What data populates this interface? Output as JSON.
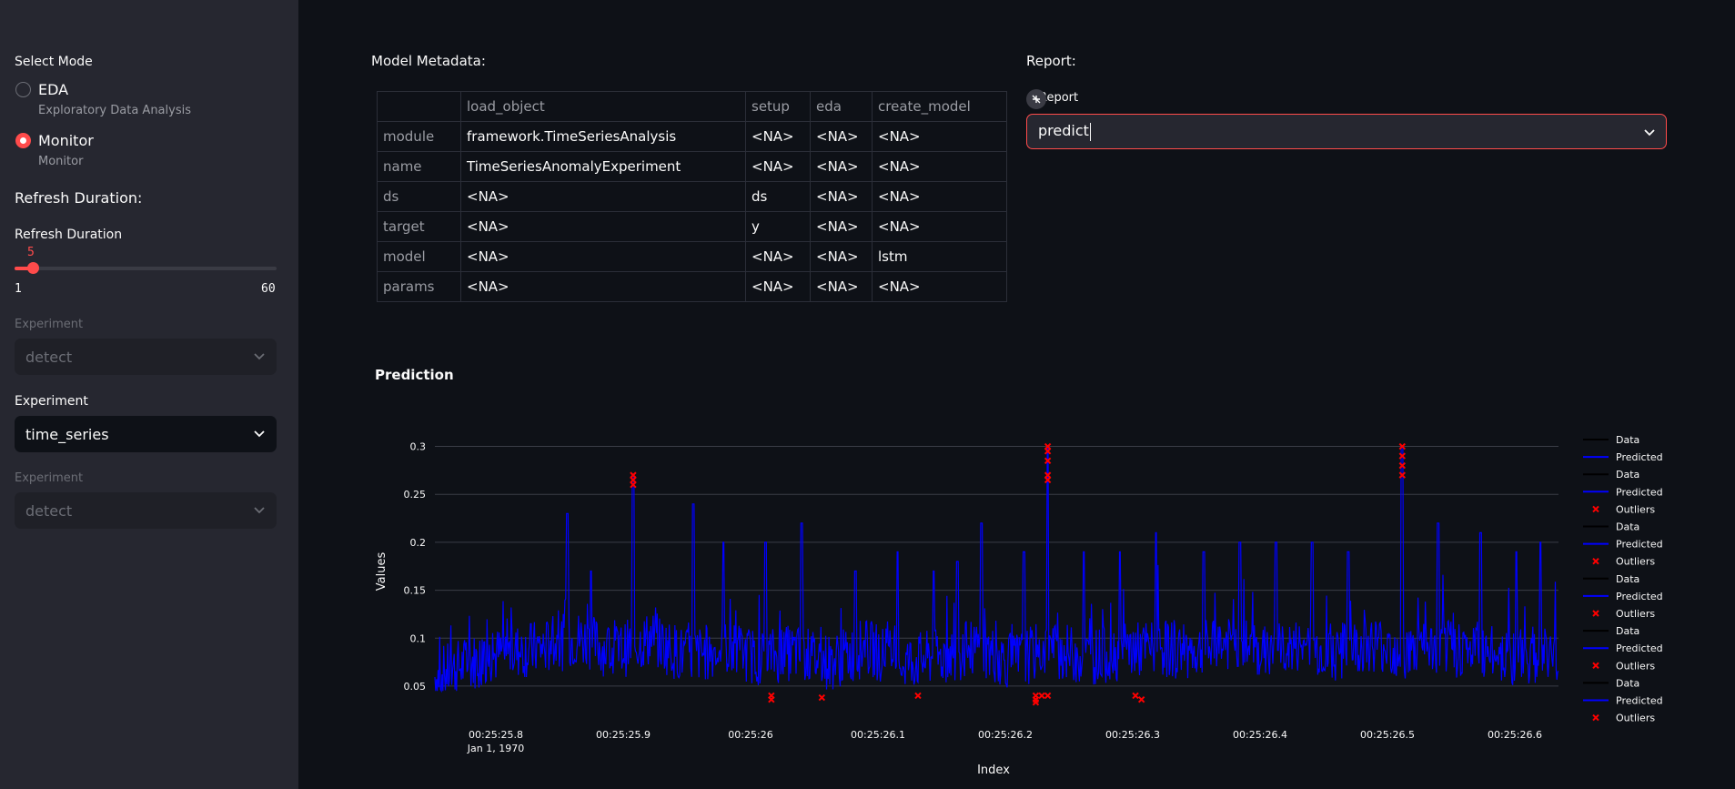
{
  "sidebar": {
    "mode_title": "Select Mode",
    "modes": [
      {
        "label": "EDA",
        "caption": "Exploratory Data Analysis",
        "selected": false
      },
      {
        "label": "Monitor",
        "caption": "Monitor",
        "selected": true
      }
    ],
    "refresh_heading": "Refresh Duration:",
    "refresh_label": "Refresh Duration",
    "slider": {
      "value": "5",
      "min": "1",
      "max": "60",
      "fraction": 0.068
    },
    "experiment_1": {
      "label": "Experiment",
      "value": "detect",
      "disabled": true
    },
    "experiment_2": {
      "label": "Experiment",
      "value": "time_series",
      "disabled": false
    },
    "experiment_3": {
      "label": "Experiment",
      "value": "detect",
      "disabled": true
    }
  },
  "metadata": {
    "title": "Model Metadata:",
    "columns": [
      "",
      "load_object",
      "setup",
      "eda",
      "create_model"
    ],
    "rows": [
      [
        "module",
        "framework.TimeSeriesAnalysis",
        "<NA>",
        "<NA>",
        "<NA>"
      ],
      [
        "name",
        "TimeSeriesAnomalyExperiment",
        "<NA>",
        "<NA>",
        "<NA>"
      ],
      [
        "ds",
        "<NA>",
        "ds",
        "<NA>",
        "<NA>"
      ],
      [
        "target",
        "<NA>",
        "y",
        "<NA>",
        "<NA>"
      ],
      [
        "model",
        "<NA>",
        "<NA>",
        "<NA>",
        "lstm"
      ],
      [
        "params",
        "<NA>",
        "<NA>",
        "<NA>",
        "<NA>"
      ]
    ]
  },
  "report": {
    "title": "Report:",
    "select_label": "Report",
    "select_value": "predict"
  },
  "prediction": {
    "title": "Prediction"
  },
  "colors": {
    "accent": "#ff4b4b",
    "predicted": "#0000ff",
    "data": "#000000",
    "outliers": "#ff0000"
  },
  "chart_data": {
    "type": "line",
    "title": "",
    "xlabel": "Index",
    "ylabel": "Values",
    "x_tick_labels": [
      "00:25:25.8",
      "00:25:25.9",
      "00:25:26",
      "00:25:26.1",
      "00:25:26.2",
      "00:25:26.3",
      "00:25:26.4",
      "00:25:26.5",
      "00:25:26.6"
    ],
    "x_tick_sublabel": "Jan 1, 1970",
    "x_range": [
      "00:25:25.770",
      "00:25:26.705"
    ],
    "y_ticks": [
      0.05,
      0.1,
      0.15,
      0.2,
      0.25,
      0.3
    ],
    "ylim": [
      0.03,
      0.31
    ],
    "grid": true,
    "legend_position": "right",
    "legend": [
      {
        "name": "Data",
        "kind": "line"
      },
      {
        "name": "Predicted",
        "kind": "line"
      },
      {
        "name": "Data",
        "kind": "line"
      },
      {
        "name": "Predicted",
        "kind": "line"
      },
      {
        "name": "Outliers",
        "kind": "marker"
      },
      {
        "name": "Data",
        "kind": "line"
      },
      {
        "name": "Predicted",
        "kind": "line"
      },
      {
        "name": "Outliers",
        "kind": "marker"
      },
      {
        "name": "Data",
        "kind": "line"
      },
      {
        "name": "Predicted",
        "kind": "line"
      },
      {
        "name": "Outliers",
        "kind": "marker"
      },
      {
        "name": "Data",
        "kind": "line"
      },
      {
        "name": "Predicted",
        "kind": "line"
      },
      {
        "name": "Outliers",
        "kind": "marker"
      },
      {
        "name": "Data",
        "kind": "line"
      },
      {
        "name": "Predicted",
        "kind": "line"
      },
      {
        "name": "Outliers",
        "kind": "marker"
      }
    ],
    "predicted_baseline": [
      [
        0.77,
        0.06
      ],
      [
        0.8,
        0.075
      ],
      [
        0.83,
        0.085
      ],
      [
        0.86,
        0.09
      ],
      [
        0.89,
        0.1
      ],
      [
        0.92,
        0.085
      ],
      [
        0.95,
        0.1
      ],
      [
        0.98,
        0.08
      ],
      [
        1.01,
        0.09
      ],
      [
        1.04,
        0.08
      ],
      [
        1.07,
        0.085
      ],
      [
        1.1,
        0.075
      ],
      [
        1.13,
        0.09
      ],
      [
        1.16,
        0.075
      ],
      [
        1.19,
        0.08
      ],
      [
        1.22,
        0.09
      ],
      [
        1.25,
        0.075
      ],
      [
        1.28,
        0.09
      ],
      [
        1.31,
        0.08
      ],
      [
        1.34,
        0.085
      ],
      [
        1.37,
        0.09
      ],
      [
        1.4,
        0.085
      ],
      [
        1.43,
        0.095
      ],
      [
        1.46,
        0.085
      ],
      [
        1.49,
        0.09
      ],
      [
        1.52,
        0.085
      ],
      [
        1.55,
        0.095
      ],
      [
        1.58,
        0.085
      ],
      [
        1.61,
        0.09
      ],
      [
        1.64,
        0.085
      ],
      [
        1.67,
        0.08
      ],
      [
        1.705,
        0.085
      ]
    ],
    "predicted_peaks": [
      [
        0.88,
        0.23
      ],
      [
        0.935,
        0.27
      ],
      [
        0.9,
        0.17
      ],
      [
        0.985,
        0.24
      ],
      [
        1.01,
        0.2
      ],
      [
        1.045,
        0.2
      ],
      [
        1.075,
        0.22
      ],
      [
        1.12,
        0.17
      ],
      [
        1.155,
        0.19
      ],
      [
        1.185,
        0.17
      ],
      [
        1.205,
        0.18
      ],
      [
        1.225,
        0.22
      ],
      [
        1.26,
        0.19
      ],
      [
        1.28,
        0.3
      ],
      [
        1.31,
        0.19
      ],
      [
        1.34,
        0.19
      ],
      [
        1.37,
        0.21
      ],
      [
        1.41,
        0.19
      ],
      [
        1.44,
        0.2
      ],
      [
        1.47,
        0.2
      ],
      [
        1.5,
        0.2
      ],
      [
        1.53,
        0.19
      ],
      [
        1.575,
        0.3
      ],
      [
        1.605,
        0.22
      ],
      [
        1.64,
        0.21
      ],
      [
        1.67,
        0.19
      ],
      [
        1.69,
        0.2
      ]
    ],
    "outliers": [
      [
        0.935,
        0.27
      ],
      [
        0.935,
        0.265
      ],
      [
        0.935,
        0.26
      ],
      [
        1.05,
        0.04
      ],
      [
        1.05,
        0.036
      ],
      [
        1.092,
        0.038
      ],
      [
        1.172,
        0.04
      ],
      [
        1.27,
        0.04
      ],
      [
        1.27,
        0.036
      ],
      [
        1.27,
        0.033
      ],
      [
        1.275,
        0.04
      ],
      [
        1.28,
        0.3
      ],
      [
        1.28,
        0.295
      ],
      [
        1.28,
        0.285
      ],
      [
        1.28,
        0.27
      ],
      [
        1.28,
        0.265
      ],
      [
        1.28,
        0.04
      ],
      [
        1.353,
        0.04
      ],
      [
        1.358,
        0.036
      ],
      [
        1.575,
        0.3
      ],
      [
        1.575,
        0.29
      ],
      [
        1.575,
        0.28
      ],
      [
        1.575,
        0.27
      ]
    ]
  }
}
